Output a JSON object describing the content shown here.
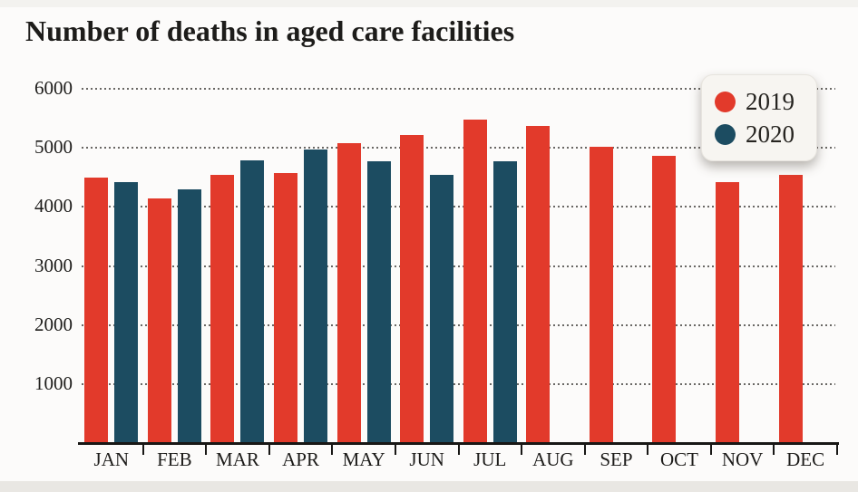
{
  "page": {
    "background": "#fcfbfa"
  },
  "chart_data": {
    "type": "bar",
    "title": "Number of deaths in aged care facilities",
    "categories": [
      "JAN",
      "FEB",
      "MAR",
      "APR",
      "MAY",
      "JUN",
      "JUL",
      "AUG",
      "SEP",
      "OCT",
      "NOV",
      "DEC"
    ],
    "series": [
      {
        "name": "2019",
        "color": "#e23a2b",
        "values": [
          4480,
          4130,
          4530,
          4560,
          5060,
          5210,
          5470,
          5350,
          5000,
          4850,
          4400,
          4520
        ]
      },
      {
        "name": "2020",
        "color": "#1c4c61",
        "values": [
          4410,
          4280,
          4770,
          4960,
          4750,
          4520,
          4750,
          null,
          null,
          null,
          null,
          null
        ]
      }
    ],
    "xlabel": "",
    "ylabel": "",
    "ylim": [
      0,
      6000
    ],
    "yticks": [
      1000,
      2000,
      3000,
      4000,
      5000,
      6000
    ],
    "grid": "horizontal-dotted",
    "legend_position": "top-right",
    "axis_color": "#181715",
    "text_color": "#1d1c1a"
  }
}
